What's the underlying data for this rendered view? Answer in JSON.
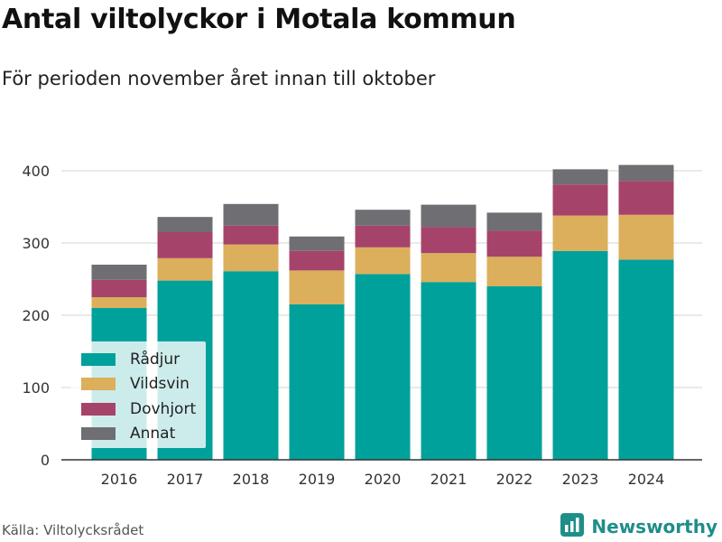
{
  "header": {
    "title": "Antal viltolyckor i Motala kommun",
    "subtitle": "För perioden november året innan till oktober"
  },
  "footer": {
    "source": "Källa: Viltolycksrådet",
    "brand": "Newsworthy",
    "brand_icon": "bar-chart-logo-icon"
  },
  "chart_data": {
    "type": "bar",
    "stacked": true,
    "categories": [
      "2016",
      "2017",
      "2018",
      "2019",
      "2020",
      "2021",
      "2022",
      "2023",
      "2024"
    ],
    "series": [
      {
        "name": "Rådjur",
        "color": "#00a19a",
        "values": [
          210,
          248,
          261,
          215,
          257,
          246,
          240,
          289,
          277
        ]
      },
      {
        "name": "Vildsvin",
        "color": "#dbaf5c",
        "values": [
          15,
          31,
          37,
          47,
          37,
          40,
          41,
          49,
          62
        ]
      },
      {
        "name": "Dovhjort",
        "color": "#a6436b",
        "values": [
          24,
          36,
          26,
          27,
          30,
          36,
          36,
          43,
          47
        ]
      },
      {
        "name": "Annat",
        "color": "#6e6e73",
        "values": [
          21,
          21,
          30,
          20,
          22,
          31,
          25,
          21,
          22
        ]
      }
    ],
    "yticks": [
      0,
      100,
      200,
      300,
      400
    ],
    "ylim": [
      0,
      430
    ],
    "xlabel": "",
    "ylabel": "",
    "grid": true,
    "legend_position": "bottom-left"
  }
}
